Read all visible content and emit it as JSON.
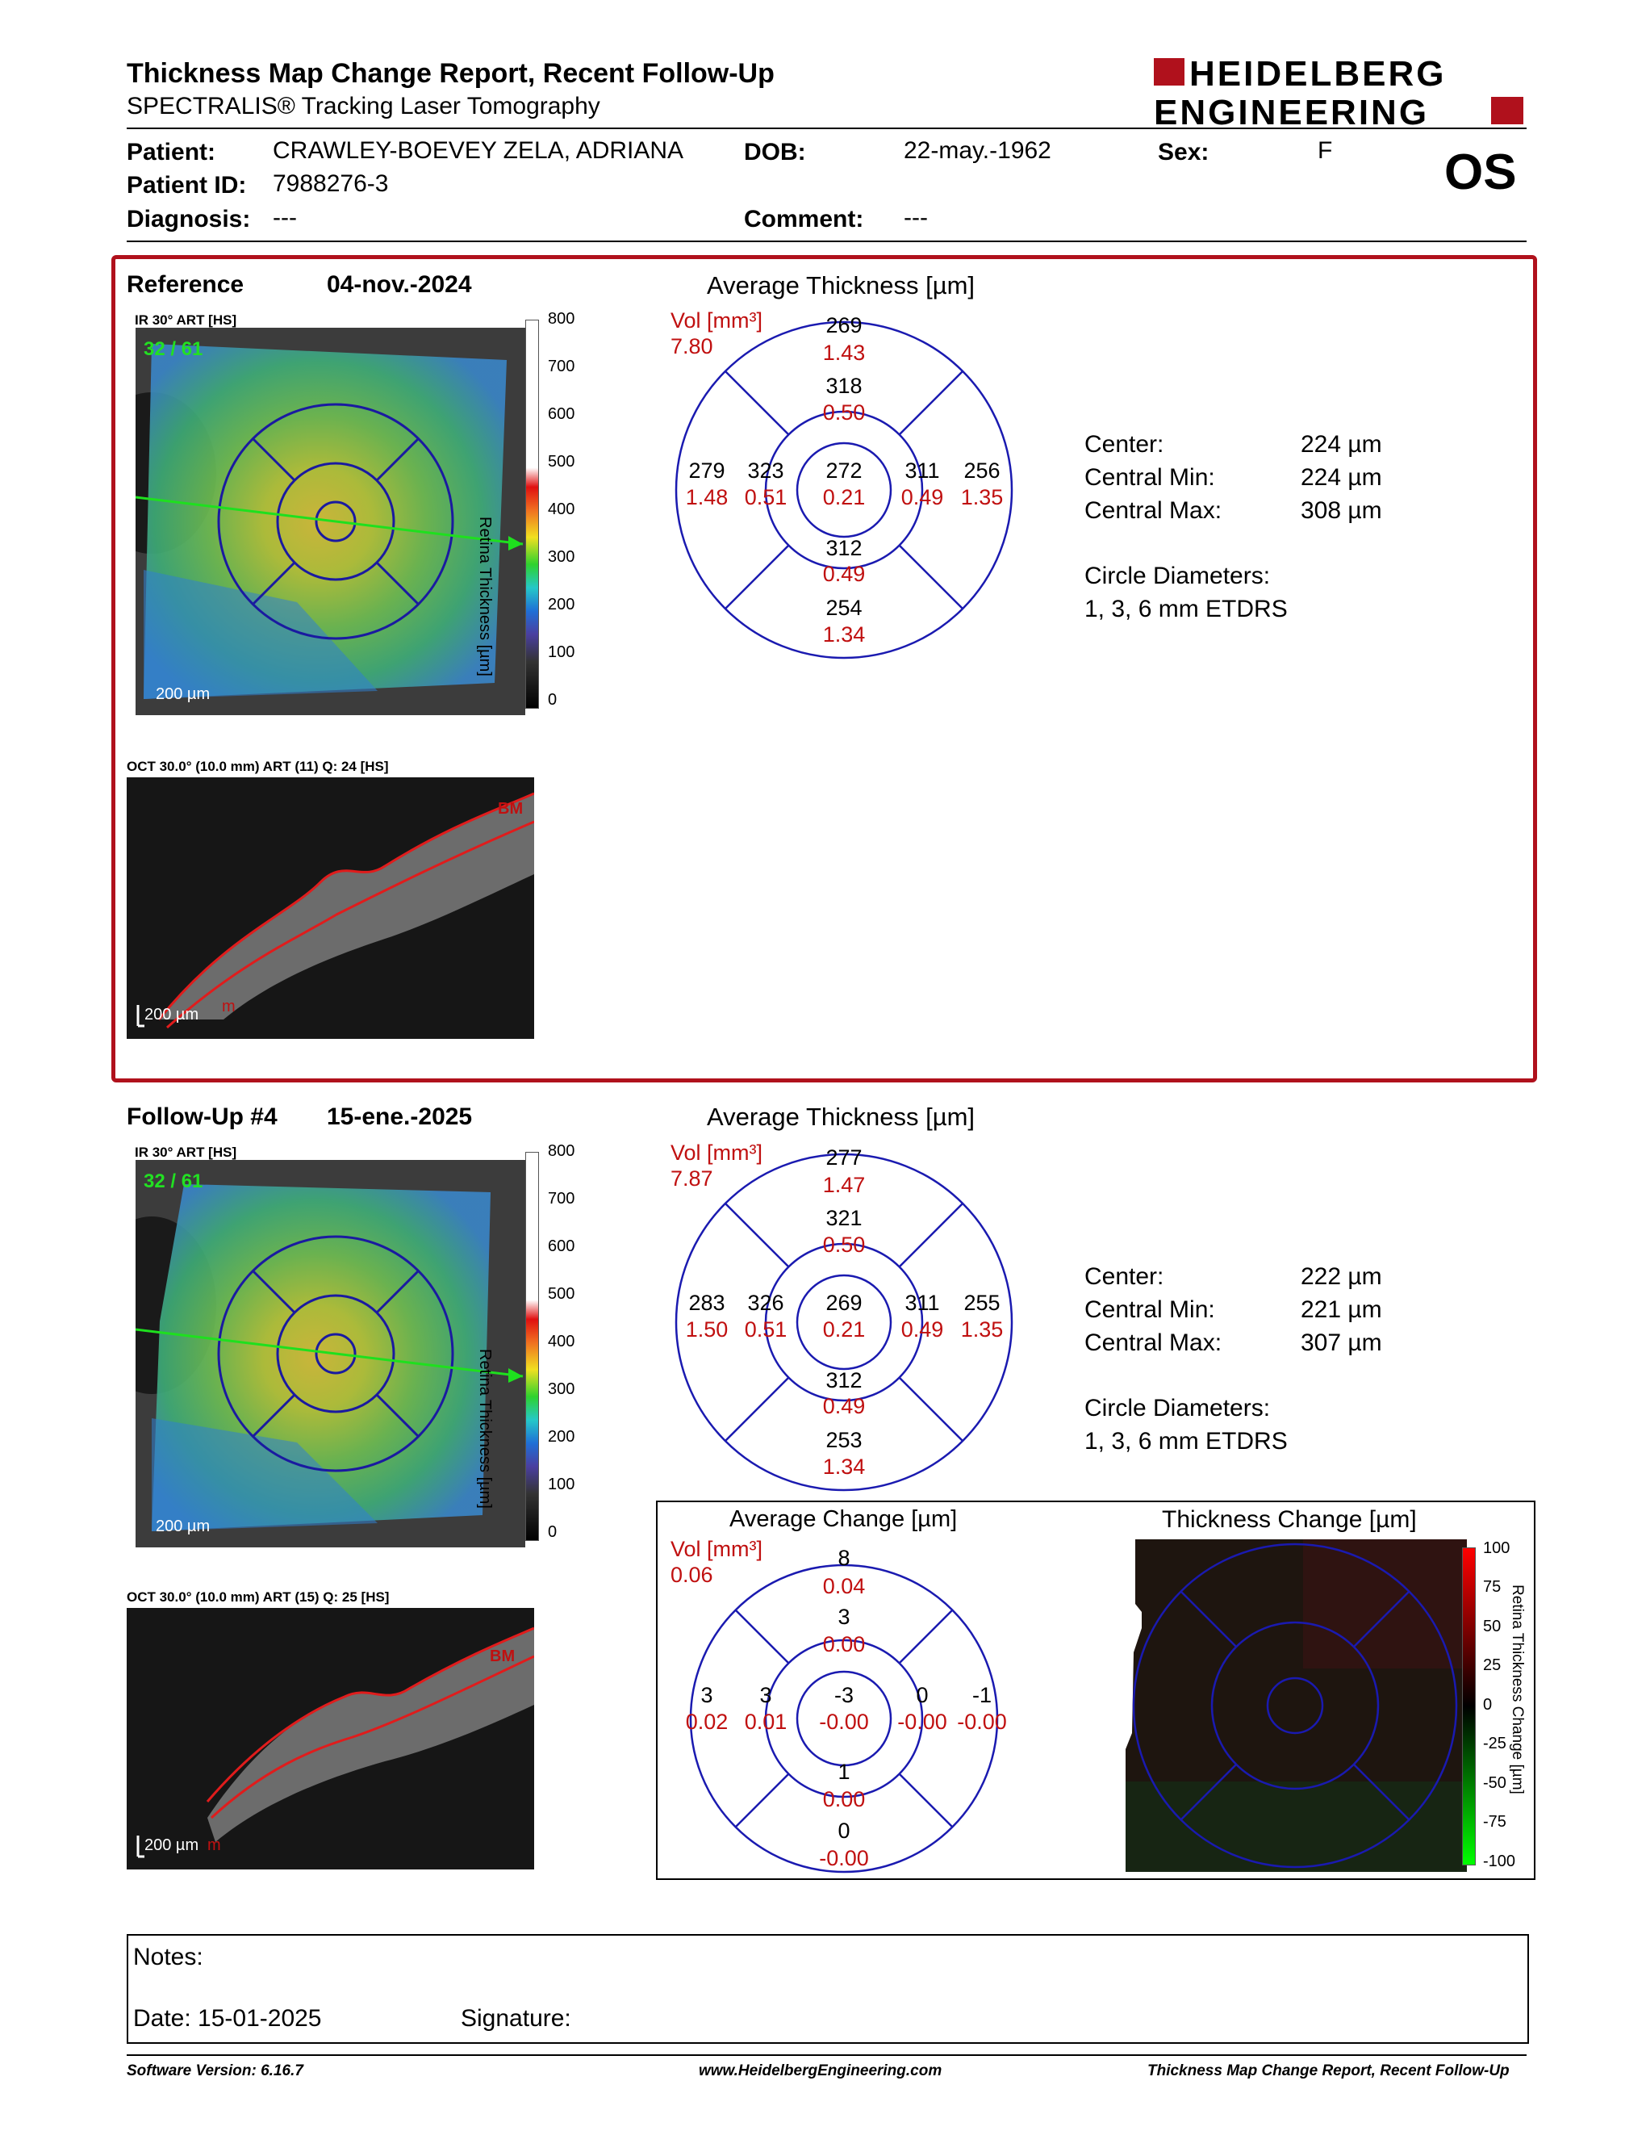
{
  "header": {
    "title": "Thickness Map Change Report, Recent Follow-Up",
    "subtitle": "SPECTRALIS® Tracking Laser Tomography",
    "logo_line1": "HEIDELBERG",
    "logo_line2": "ENGINEERING",
    "brand_color": "#b0111c"
  },
  "patient": {
    "patient_label": "Patient:",
    "patient_value": "CRAWLEY-BOEVEY ZELA, ADRIANA",
    "dob_label": "DOB:",
    "dob_value": "22-may.-1962",
    "sex_label": "Sex:",
    "sex_value": "F",
    "id_label": "Patient ID:",
    "id_value": "7988276-3",
    "diagnosis_label": "Diagnosis:",
    "diagnosis_value": "---",
    "comment_label": "Comment:",
    "comment_value": "---",
    "eye": "OS"
  },
  "reference": {
    "label": "Reference",
    "date": "04-nov.-2024",
    "ir_label": "IR 30° ART [HS]",
    "frames": "32 / 61",
    "scale": "200 µm",
    "colorbar_ticks": [
      "800",
      "700",
      "600",
      "500",
      "400",
      "300",
      "200",
      "100",
      "0"
    ],
    "colorbar_title": "Retina Thickness [µm]",
    "oct_label": "OCT 30.0° (10.0 mm) ART (11) Q: 24 [HS]",
    "oct_scale": "200 µm",
    "bm": "BM",
    "m": "m",
    "avg_title": "Average Thickness [µm]",
    "vol_label": "Vol [mm³]",
    "vol_value": "7.80",
    "etdrs": {
      "outer_sup": [
        "269",
        "1.43"
      ],
      "inner_sup": [
        "318",
        "0.50"
      ],
      "outer_temp": [
        "279",
        "1.48"
      ],
      "inner_temp": [
        "323",
        "0.51"
      ],
      "center": [
        "272",
        "0.21"
      ],
      "inner_nasal": [
        "311",
        "0.49"
      ],
      "outer_nasal": [
        "256",
        "1.35"
      ],
      "inner_inf": [
        "312",
        "0.49"
      ],
      "outer_inf": [
        "254",
        "1.34"
      ]
    },
    "stats": {
      "center_label": "Center:",
      "center_value": "224 µm",
      "min_label": "Central Min:",
      "min_value": "224 µm",
      "max_label": "Central Max:",
      "max_value": "308 µm",
      "circ_label": "Circle Diameters:",
      "circ_value": "1, 3, 6 mm ETDRS"
    }
  },
  "followup": {
    "label": "Follow-Up #4",
    "date": "15-ene.-2025",
    "ir_label": "IR 30° ART [HS]",
    "frames": "32 / 61",
    "scale": "200 µm",
    "colorbar_ticks": [
      "800",
      "700",
      "600",
      "500",
      "400",
      "300",
      "200",
      "100",
      "0"
    ],
    "colorbar_title": "Retina Thickness [µm]",
    "oct_label": "OCT 30.0° (10.0 mm) ART (15) Q: 25 [HS]",
    "oct_scale": "200 µm",
    "bm": "BM",
    "m": "m",
    "avg_title": "Average Thickness [µm]",
    "vol_label": "Vol [mm³]",
    "vol_value": "7.87",
    "etdrs": {
      "outer_sup": [
        "277",
        "1.47"
      ],
      "inner_sup": [
        "321",
        "0.50"
      ],
      "outer_temp": [
        "283",
        "1.50"
      ],
      "inner_temp": [
        "326",
        "0.51"
      ],
      "center": [
        "269",
        "0.21"
      ],
      "inner_nasal": [
        "311",
        "0.49"
      ],
      "outer_nasal": [
        "255",
        "1.35"
      ],
      "inner_inf": [
        "312",
        "0.49"
      ],
      "outer_inf": [
        "253",
        "1.34"
      ]
    },
    "stats": {
      "center_label": "Center:",
      "center_value": "222 µm",
      "min_label": "Central Min:",
      "min_value": "221 µm",
      "max_label": "Central Max:",
      "max_value": "307 µm",
      "circ_label": "Circle Diameters:",
      "circ_value": "1, 3, 6 mm ETDRS"
    }
  },
  "change": {
    "avg_title": "Average Change [µm]",
    "vol_label": "Vol [mm³]",
    "vol_value": "0.06",
    "etdrs": {
      "outer_sup": [
        "8",
        "0.04"
      ],
      "inner_sup": [
        "3",
        "0.00"
      ],
      "outer_temp": [
        "3",
        "0.02"
      ],
      "inner_temp": [
        "3",
        "0.01"
      ],
      "center": [
        "-3",
        "-0.00"
      ],
      "inner_nasal": [
        "0",
        "-0.00"
      ],
      "outer_nasal": [
        "-1",
        "-0.00"
      ],
      "inner_inf": [
        "1",
        "0.00"
      ],
      "outer_inf": [
        "0",
        "-0.00"
      ]
    },
    "map_title": "Thickness Change [µm]",
    "colorbar_ticks": [
      "100",
      "75",
      "50",
      "25",
      "0",
      "-25",
      "-50",
      "-75",
      "-100"
    ],
    "colorbar_title": "Retina Thickness Change [µm]"
  },
  "notes": {
    "notes_label": "Notes:",
    "date_label": "Date: 15-01-2025",
    "signature_label": "Signature:"
  },
  "footer": {
    "software": "Software Version: 6.16.7",
    "website": "www.HeidelbergEngineering.com",
    "report": "Thickness Map Change Report, Recent Follow-Up"
  }
}
